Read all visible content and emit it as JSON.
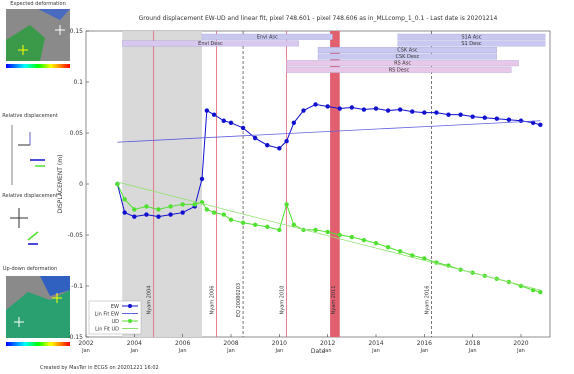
{
  "left_panel": {
    "titles": [
      "Expected deformation",
      "Relative displacement",
      "Relative displacement",
      "Up-down deformation"
    ]
  },
  "chart_data": {
    "type": "line",
    "title": "Ground displacement EW-UD and linear fit, pixel 748.601 - pixel 748.606 as in_MLLcomp_1_0.1 - Last date is 20201214",
    "x_label": "Date",
    "y_label": "DISPLACEMENT (m)",
    "month_label": "Jan",
    "footer": "Created by MasTer in ECGS on 20201221 16:02",
    "xlim": [
      2002,
      2021.2
    ],
    "ylim": [
      -0.15,
      0.15
    ],
    "xticks": [
      2002,
      2004,
      2006,
      2008,
      2010,
      2012,
      2014,
      2016,
      2018,
      2020
    ],
    "yticks": [
      -0.15,
      -0.1,
      -0.05,
      0,
      0.05,
      0.1,
      0.15
    ],
    "legend": "lower left",
    "bands": [
      {
        "start": 2003.5,
        "end": 2006.8,
        "color": "#d9d9d9"
      },
      {
        "start": 2012.1,
        "end": 2012.5,
        "color": "#e06070",
        "label": "Nyam 2011"
      }
    ],
    "events": [
      {
        "x": 2004.8,
        "label": "Nyam 2004",
        "color": "#e06070",
        "dashed": false
      },
      {
        "x": 2007.4,
        "label": "Nyam 2006",
        "color": "#e06070",
        "dashed": false
      },
      {
        "x": 2008.5,
        "label": "EQ 20080203",
        "color": "#555555",
        "dashed": true
      },
      {
        "x": 2010.3,
        "label": "Nyam 2010",
        "color": "#e06070",
        "dashed": false
      },
      {
        "x": 2016.3,
        "label": "Nyam 2016",
        "color": "#555555",
        "dashed": true
      }
    ],
    "acquisitions": [
      {
        "label": "Envi Asc",
        "start": 2006.8,
        "end": 2012.2,
        "color": "#c8c8f0"
      },
      {
        "label": "S1A Asc",
        "start": 2014.9,
        "end": 2021.0,
        "color": "#c8c8f0"
      },
      {
        "label": "Envi Desc",
        "start": 2003.5,
        "end": 2010.8,
        "color": "#d8c8f0"
      },
      {
        "label": "S1 Desc",
        "start": 2014.9,
        "end": 2021.0,
        "color": "#c8c8f0"
      },
      {
        "label": "CSK Asc",
        "start": 2011.6,
        "end": 2019.0,
        "color": "#c8c8f0"
      },
      {
        "label": "CSK Desc",
        "start": 2011.6,
        "end": 2019.0,
        "color": "#c8c8f0"
      },
      {
        "label": "RS Asc",
        "start": 2010.3,
        "end": 2019.9,
        "color": "#e8c8e8"
      },
      {
        "label": "RS Desc",
        "start": 2010.3,
        "end": 2019.6,
        "color": "#e8c8e8"
      }
    ],
    "series": [
      {
        "name": "EW",
        "color": "#1010d0",
        "markers": true,
        "x": [
          2003.3,
          2003.6,
          2004.0,
          2004.5,
          2005.0,
          2005.5,
          2006.0,
          2006.5,
          2006.8,
          2007.0,
          2007.3,
          2007.7,
          2008.0,
          2008.5,
          2009.0,
          2009.5,
          2010.0,
          2010.3,
          2010.6,
          2011.0,
          2011.5,
          2012.0,
          2012.5,
          2013.0,
          2013.5,
          2014.0,
          2014.5,
          2015.0,
          2015.5,
          2016.0,
          2016.5,
          2017.0,
          2017.5,
          2018.0,
          2018.5,
          2019.0,
          2019.5,
          2020.0,
          2020.5,
          2020.8
        ],
        "values": [
          0.0,
          -0.028,
          -0.032,
          -0.03,
          -0.032,
          -0.03,
          -0.028,
          -0.022,
          0.005,
          0.072,
          0.068,
          0.062,
          0.06,
          0.055,
          0.045,
          0.038,
          0.035,
          0.042,
          0.06,
          0.072,
          0.078,
          0.076,
          0.074,
          0.075,
          0.073,
          0.074,
          0.072,
          0.073,
          0.071,
          0.07,
          0.07,
          0.068,
          0.068,
          0.066,
          0.065,
          0.064,
          0.063,
          0.062,
          0.06,
          0.058
        ]
      },
      {
        "name": "Lin Fit EW",
        "color": "#6060e0",
        "markers": false,
        "x": [
          2003.3,
          2020.8
        ],
        "values": [
          0.041,
          0.062
        ]
      },
      {
        "name": "UD",
        "color": "#50e030",
        "markers": true,
        "x": [
          2003.3,
          2003.6,
          2004.0,
          2004.5,
          2005.0,
          2005.5,
          2006.0,
          2006.5,
          2006.8,
          2007.0,
          2007.3,
          2007.7,
          2008.0,
          2008.5,
          2009.0,
          2009.5,
          2010.0,
          2010.3,
          2010.6,
          2011.0,
          2011.5,
          2012.0,
          2012.5,
          2013.0,
          2013.5,
          2014.0,
          2014.5,
          2015.0,
          2015.5,
          2016.0,
          2016.5,
          2017.0,
          2017.5,
          2018.0,
          2018.5,
          2019.0,
          2019.5,
          2020.0,
          2020.5,
          2020.8
        ],
        "values": [
          0.0,
          -0.015,
          -0.025,
          -0.022,
          -0.025,
          -0.022,
          -0.02,
          -0.02,
          -0.018,
          -0.025,
          -0.028,
          -0.03,
          -0.035,
          -0.038,
          -0.04,
          -0.042,
          -0.045,
          -0.02,
          -0.04,
          -0.045,
          -0.045,
          -0.047,
          -0.05,
          -0.052,
          -0.055,
          -0.058,
          -0.062,
          -0.066,
          -0.07,
          -0.073,
          -0.077,
          -0.08,
          -0.084,
          -0.087,
          -0.09,
          -0.093,
          -0.096,
          -0.1,
          -0.104,
          -0.106
        ]
      },
      {
        "name": "Lin Fit UD",
        "color": "#90e070",
        "markers": false,
        "x": [
          2003.3,
          2020.8
        ],
        "values": [
          0.002,
          -0.104
        ]
      }
    ]
  }
}
